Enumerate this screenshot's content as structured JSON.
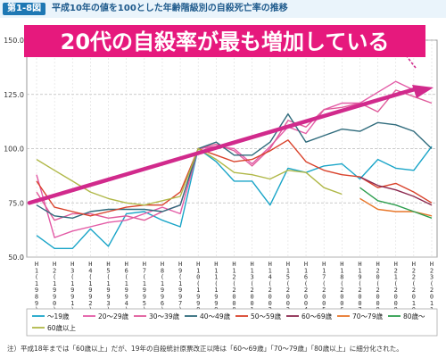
{
  "header": {
    "figure_label": "第1-8図",
    "title": "平成10年の値を100とした年齢階級別の自殺死亡率の推移"
  },
  "note": "注）平成18年までは「60歳以上」だが、19年の自殺統計原票改正以降は「60～69歳」「70～79歳」「80歳以上」に細分化された。",
  "colors": {
    "accent": "#e6197d",
    "arrow": "#d12a8c"
  },
  "chart_data": {
    "type": "line",
    "annotation": "20代の自殺率が最も増加している",
    "ylim": [
      50,
      150
    ],
    "yticks": [
      "50.0",
      "75.0",
      "100.0",
      "125.0",
      "150.0"
    ],
    "grid": true,
    "legend_position": "bottom",
    "categories": [
      "H1 (1989)",
      "H2 (1990)",
      "H3 (1991)",
      "H4 (1992)",
      "H5 (1993)",
      "H6 (1994)",
      "H7 (1995)",
      "H8 (1996)",
      "H9 (1997)",
      "H10 (1998)",
      "H11 (1999)",
      "H12 (2000)",
      "H13 (2001)",
      "H14 (2002)",
      "H15 (2003)",
      "H16 (2004)",
      "H17 (2005)",
      "H18 (2006)",
      "H19 (2007)",
      "H20 (2008)",
      "H21 (2009)",
      "H22 (2010)",
      "H23 (2011)"
    ],
    "xtick_labels": [
      {
        "top": "H",
        "mid": "1",
        "year": "1989"
      },
      {
        "top": "H",
        "mid": "2",
        "year": "1990"
      },
      {
        "top": "H",
        "mid": "3",
        "year": "1991"
      },
      {
        "top": "H",
        "mid": "4",
        "year": "1992"
      },
      {
        "top": "H",
        "mid": "5",
        "year": "1993"
      },
      {
        "top": "H",
        "mid": "6",
        "year": "1994"
      },
      {
        "top": "H",
        "mid": "7",
        "year": "1995"
      },
      {
        "top": "H",
        "mid": "8",
        "year": "1996"
      },
      {
        "top": "H",
        "mid": "9",
        "year": "1997"
      },
      {
        "top": "H",
        "mid": "10",
        "year": "1998"
      },
      {
        "top": "H",
        "mid": "11",
        "year": "1999"
      },
      {
        "top": "H",
        "mid": "12",
        "year": "2000"
      },
      {
        "top": "H",
        "mid": "13",
        "year": "2001"
      },
      {
        "top": "H",
        "mid": "14",
        "year": "2002"
      },
      {
        "top": "H",
        "mid": "15",
        "year": "2003"
      },
      {
        "top": "H",
        "mid": "16",
        "year": "2004"
      },
      {
        "top": "H",
        "mid": "17",
        "year": "2005"
      },
      {
        "top": "H",
        "mid": "18",
        "year": "2006"
      },
      {
        "top": "H",
        "mid": "19",
        "year": "2007"
      },
      {
        "top": "H",
        "mid": "20",
        "year": "2008"
      },
      {
        "top": "H",
        "mid": "21",
        "year": "2009"
      },
      {
        "top": "H",
        "mid": "22",
        "year": "2010"
      },
      {
        "top": "H",
        "mid": "23",
        "year": "2011"
      }
    ],
    "series": [
      {
        "name": "～19歳",
        "color": "#1aa5c8",
        "values": [
          60,
          54,
          54,
          63,
          55,
          70,
          71,
          67,
          64,
          100,
          94,
          85,
          85,
          74,
          91,
          89,
          92,
          93,
          86,
          95,
          91,
          90,
          101
        ]
      },
      {
        "name": "20～29歳",
        "color": "#e35ba6",
        "values": [
          88,
          59,
          62,
          64,
          66,
          67,
          70,
          73,
          70,
          100,
          101,
          100,
          93,
          101,
          110,
          107,
          118,
          121,
          121,
          126,
          131,
          127,
          128
        ]
      },
      {
        "name": "30～39歳",
        "color": "#e05a9a",
        "values": [
          80,
          67,
          70,
          70,
          68,
          69,
          67,
          71,
          74,
          100,
          102,
          99,
          92,
          100,
          113,
          110,
          118,
          119,
          121,
          117,
          127,
          124,
          121
        ]
      },
      {
        "name": "40～49歳",
        "color": "#2f6b7c",
        "values": [
          74,
          69,
          68,
          71,
          72,
          72,
          72,
          71,
          74,
          100,
          103,
          97,
          97,
          103,
          116,
          103,
          106,
          109,
          108,
          112,
          111,
          108,
          100
        ]
      },
      {
        "name": "50～59歳",
        "color": "#d9422b",
        "values": [
          85,
          73,
          71,
          69,
          71,
          73,
          74,
          74,
          80,
          100,
          97,
          94,
          95,
          99,
          104,
          94,
          90,
          88,
          87,
          82,
          84,
          80,
          75
        ]
      },
      {
        "name": "60～69歳",
        "color": "#8c2a50",
        "values": [
          null,
          null,
          null,
          null,
          null,
          null,
          null,
          null,
          null,
          null,
          null,
          null,
          null,
          null,
          null,
          null,
          null,
          null,
          87,
          83,
          81,
          78,
          74
        ]
      },
      {
        "name": "70～79歳",
        "color": "#e8772a",
        "values": [
          null,
          null,
          null,
          null,
          null,
          null,
          null,
          null,
          null,
          null,
          null,
          null,
          null,
          null,
          null,
          null,
          null,
          null,
          77,
          72,
          71,
          71,
          69
        ]
      },
      {
        "name": "80歳～",
        "color": "#2e9e4f",
        "values": [
          null,
          null,
          null,
          null,
          null,
          null,
          null,
          null,
          null,
          null,
          null,
          null,
          null,
          null,
          null,
          null,
          null,
          null,
          82,
          76,
          74,
          71,
          68
        ]
      },
      {
        "name": "60歳以上",
        "color": "#b0b848",
        "values": [
          95,
          90,
          85,
          80,
          77,
          75,
          74,
          76,
          78,
          100,
          95,
          89,
          88,
          86,
          90,
          89,
          82,
          79,
          null,
          null,
          null,
          null,
          null
        ]
      }
    ]
  }
}
